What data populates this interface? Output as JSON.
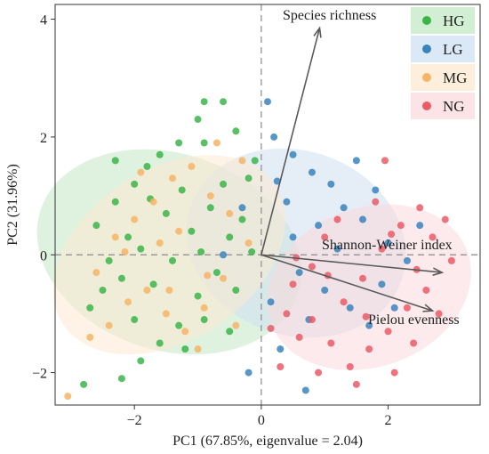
{
  "chart_data": {
    "type": "scatter",
    "xlabel": "PC1 (67.85%, eigenvalue = 2.04)",
    "ylabel": "PC2 (31.96%)",
    "xlim": [
      -3.25,
      3.45
    ],
    "ylim": [
      -2.55,
      4.25
    ],
    "xticks": [
      -2,
      0,
      2
    ],
    "yticks": [
      -2,
      0,
      2,
      4
    ],
    "grid": false,
    "legend_position": "top-right",
    "series": [
      {
        "name": "HG",
        "color": "#3bb54a",
        "ellipse": {
          "cx": -1.45,
          "cy": 0.05,
          "rx": 1.55,
          "ry": 2.3,
          "angle": -72,
          "color": "#c3e8c4"
        },
        "points": [
          [
            -2.5,
            -0.6
          ],
          [
            -2.4,
            -0.1
          ],
          [
            -2.6,
            0.5
          ],
          [
            -2.3,
            0.9
          ],
          [
            -2.0,
            1.2
          ],
          [
            -1.8,
            1.5
          ],
          [
            -1.6,
            1.7
          ],
          [
            -1.3,
            1.9
          ],
          [
            -1.0,
            2.3
          ],
          [
            -0.9,
            1.9
          ],
          [
            -1.5,
            0.7
          ],
          [
            -1.9,
            0.1
          ],
          [
            -2.2,
            -0.4
          ],
          [
            -2.7,
            -0.9
          ],
          [
            -2.0,
            -1.1
          ],
          [
            -1.7,
            -0.5
          ],
          [
            -1.4,
            -0.1
          ],
          [
            -1.1,
            0.4
          ],
          [
            -0.8,
            0.8
          ],
          [
            -0.6,
            1.2
          ],
          [
            -0.5,
            0.3
          ],
          [
            -0.7,
            -0.3
          ],
          [
            -1.0,
            -0.7
          ],
          [
            -1.3,
            -1.2
          ],
          [
            -1.6,
            -1.5
          ],
          [
            -1.9,
            -1.8
          ],
          [
            -2.2,
            -2.1
          ],
          [
            -2.8,
            -2.2
          ],
          [
            -1.2,
            -1.6
          ],
          [
            -0.9,
            -1.1
          ],
          [
            -0.4,
            -0.6
          ],
          [
            -0.3,
            0.6
          ],
          [
            -0.2,
            1.3
          ],
          [
            -0.4,
            2.1
          ],
          [
            -0.6,
            2.6
          ],
          [
            -0.9,
            2.6
          ],
          [
            -2.3,
            1.6
          ],
          [
            -2.1,
            0.3
          ],
          [
            -1.75,
            0.95
          ],
          [
            -1.25,
            1.1
          ],
          [
            -0.95,
            0.05
          ],
          [
            -0.15,
            0.05
          ],
          [
            -0.1,
            1.6
          ],
          [
            -0.5,
            -1.3
          ]
        ]
      },
      {
        "name": "LG",
        "color": "#3a84bd",
        "ellipse": {
          "cx": 0.55,
          "cy": 0.2,
          "rx": 1.45,
          "ry": 1.9,
          "angle": -70,
          "color": "#cfe0f1"
        },
        "points": [
          [
            0.1,
            2.6
          ],
          [
            0.2,
            2.0
          ],
          [
            0.5,
            1.7
          ],
          [
            0.8,
            1.4
          ],
          [
            1.1,
            1.2
          ],
          [
            0.4,
            0.9
          ],
          [
            0.9,
            0.5
          ],
          [
            1.3,
            0.8
          ],
          [
            1.6,
            0.6
          ],
          [
            1.8,
            1.1
          ],
          [
            2.0,
            0.2
          ],
          [
            2.3,
            -0.1
          ],
          [
            0.6,
            -0.3
          ],
          [
            1.0,
            -0.6
          ],
          [
            1.4,
            -0.9
          ],
          [
            1.7,
            -1.2
          ],
          [
            0.3,
            -1.6
          ],
          [
            -0.2,
            -2.0
          ],
          [
            0.7,
            -2.3
          ],
          [
            1.9,
            -0.5
          ],
          [
            2.5,
            0.5
          ],
          [
            1.2,
            0.1
          ],
          [
            0.5,
            0.3
          ],
          [
            -0.3,
            0.8
          ],
          [
            -0.6,
            0.0
          ],
          [
            0.25,
            1.25
          ],
          [
            0.75,
            -1.1
          ],
          [
            1.5,
            1.6
          ],
          [
            2.1,
            -0.9
          ],
          [
            0.15,
            -0.8
          ]
        ]
      },
      {
        "name": "MG",
        "color": "#f6b466",
        "ellipse": {
          "cx": -1.45,
          "cy": 0.0,
          "rx": 2.0,
          "ry": 1.45,
          "angle": -33,
          "color": "#fde9d1"
        },
        "points": [
          [
            -3.05,
            -2.4
          ],
          [
            -2.6,
            -0.3
          ],
          [
            -2.3,
            0.3
          ],
          [
            -2.0,
            0.6
          ],
          [
            -1.7,
            0.9
          ],
          [
            -1.4,
            1.3
          ],
          [
            -1.1,
            1.5
          ],
          [
            -0.8,
            1.0
          ],
          [
            -0.5,
            0.7
          ],
          [
            -0.2,
            0.2
          ],
          [
            -0.6,
            -0.4
          ],
          [
            -0.9,
            -0.9
          ],
          [
            -1.2,
            -1.3
          ],
          [
            -1.5,
            -1.0
          ],
          [
            -1.8,
            -0.6
          ],
          [
            -2.1,
            -0.8
          ],
          [
            -2.4,
            -1.2
          ],
          [
            -1.0,
            -1.6
          ],
          [
            -0.4,
            -1.2
          ],
          [
            -1.3,
            0.4
          ],
          [
            -1.6,
            0.2
          ],
          [
            -1.9,
            1.4
          ],
          [
            -0.7,
            1.9
          ],
          [
            -0.3,
            1.6
          ],
          [
            -2.7,
            -1.4
          ],
          [
            -0.85,
            -0.35
          ],
          [
            -1.45,
            -0.6
          ],
          [
            -2.15,
            0.05
          ]
        ]
      },
      {
        "name": "NG",
        "color": "#ea5b66",
        "ellipse": {
          "cx": 1.7,
          "cy": -0.55,
          "rx": 1.65,
          "ry": 1.35,
          "angle": -20,
          "color": "#fbd9dc"
        },
        "points": [
          [
            0.5,
            -0.5
          ],
          [
            0.8,
            -0.2
          ],
          [
            1.0,
            0.3
          ],
          [
            1.3,
            -0.8
          ],
          [
            1.6,
            -0.4
          ],
          [
            1.9,
            0.1
          ],
          [
            2.2,
            0.5
          ],
          [
            2.5,
            0.8
          ],
          [
            2.7,
            0.3
          ],
          [
            2.9,
            0.6
          ],
          [
            3.0,
            -0.1
          ],
          [
            2.6,
            -0.6
          ],
          [
            2.3,
            -0.9
          ],
          [
            2.0,
            -1.3
          ],
          [
            1.7,
            -1.6
          ],
          [
            1.4,
            -1.9
          ],
          [
            1.1,
            -1.5
          ],
          [
            0.8,
            -1.1
          ],
          [
            0.4,
            -1.0
          ],
          [
            0.6,
            -1.4
          ],
          [
            0.9,
            -2.0
          ],
          [
            1.5,
            -2.2
          ],
          [
            2.1,
            -2.0
          ],
          [
            2.4,
            -1.5
          ],
          [
            0.3,
            -1.9
          ],
          [
            2.8,
            -1.0
          ],
          [
            1.8,
            0.9
          ],
          [
            1.2,
            0.6
          ],
          [
            2.05,
            0.35
          ],
          [
            2.45,
            -0.25
          ],
          [
            0.55,
            -0.05
          ],
          [
            1.05,
            -0.35
          ],
          [
            1.65,
            -1.05
          ],
          [
            1.95,
            1.6
          ],
          [
            0.15,
            -1.25
          ]
        ]
      }
    ],
    "vectors": [
      {
        "label": "Species richness",
        "x": 0.92,
        "y": 3.85
      },
      {
        "label": "Shannon-Weiner index",
        "x": 2.85,
        "y": -0.3
      },
      {
        "label": "Pielou evenness",
        "x": 2.7,
        "y": -0.95
      }
    ]
  }
}
